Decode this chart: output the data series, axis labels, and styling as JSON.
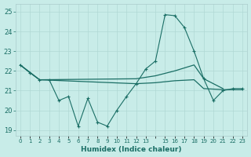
{
  "xlabel": "Humidex (Indice chaleur)",
  "background_color": "#c8ece8",
  "grid_color": "#b0d8d4",
  "line_color": "#1a6e65",
  "xlim": [
    -0.5,
    23.5
  ],
  "ylim": [
    18.7,
    25.4
  ],
  "yticks": [
    19,
    20,
    21,
    22,
    23,
    24,
    25
  ],
  "xtick_labels": [
    "0",
    "1",
    "2",
    "3",
    "4",
    "5",
    "6",
    "7",
    "8",
    "9",
    "10",
    "11",
    "12",
    "13",
    "",
    "15",
    "16",
    "17",
    "18",
    "19",
    "20",
    "21",
    "22",
    "23"
  ],
  "line1_x": [
    0,
    1,
    2,
    3,
    4,
    5,
    6,
    7,
    8,
    9,
    10,
    11,
    12,
    13,
    14,
    15,
    16,
    17,
    18,
    19,
    20,
    21,
    22,
    23
  ],
  "line1_y": [
    22.3,
    21.9,
    21.55,
    21.55,
    20.5,
    20.7,
    19.2,
    20.6,
    19.4,
    19.2,
    20.0,
    20.7,
    21.35,
    22.1,
    22.5,
    24.85,
    24.8,
    24.2,
    23.0,
    21.6,
    20.5,
    21.0,
    21.1,
    21.1
  ],
  "line2_x": [
    0,
    2,
    12,
    14,
    16,
    18,
    19,
    21
  ],
  "line2_y": [
    22.3,
    21.55,
    21.6,
    21.75,
    22.0,
    22.3,
    21.6,
    21.1
  ],
  "line3_x": [
    0,
    2,
    12,
    14,
    16,
    18,
    19,
    21,
    23
  ],
  "line3_y": [
    22.3,
    21.55,
    21.35,
    21.4,
    21.5,
    21.55,
    21.1,
    21.05,
    21.05
  ]
}
